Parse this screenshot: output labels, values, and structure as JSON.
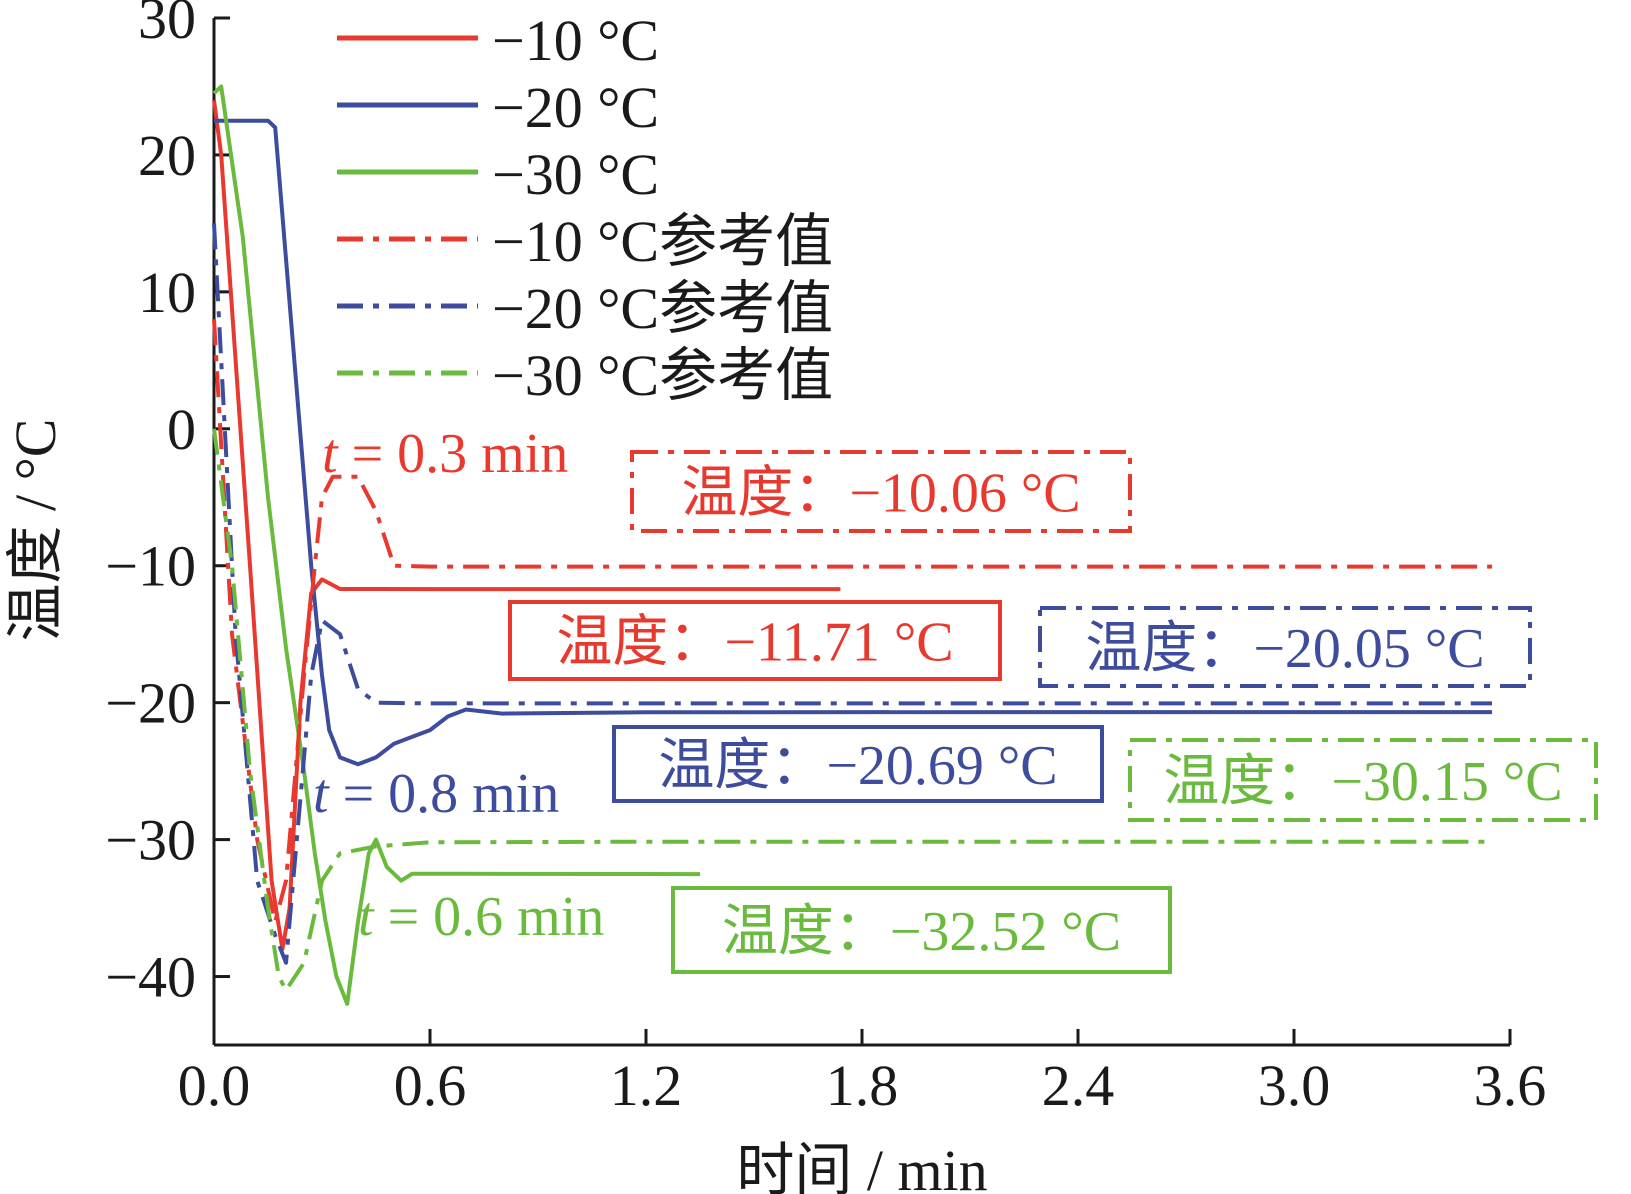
{
  "chart_data": {
    "type": "line",
    "xlabel": "时间 / min",
    "ylabel": "温度 / °C",
    "xlim": [
      0,
      3.6
    ],
    "ylim": [
      -45,
      30
    ],
    "xticks": [
      "0.0",
      "0.6",
      "1.2",
      "1.8",
      "2.4",
      "3.0",
      "3.6"
    ],
    "yticks": [
      "30",
      "20",
      "10",
      "0",
      "−10",
      "−20",
      "−30",
      "−40"
    ],
    "grid": false,
    "legend_position": "top-left",
    "series": [
      {
        "name": "−10 °C",
        "color": "#e8392f",
        "dash": "solid",
        "points": [
          [
            0.0,
            24
          ],
          [
            0.02,
            20
          ],
          [
            0.1,
            -10
          ],
          [
            0.16,
            -33
          ],
          [
            0.19,
            -38
          ],
          [
            0.21,
            -35
          ],
          [
            0.24,
            -20
          ],
          [
            0.27,
            -12
          ],
          [
            0.3,
            -11
          ],
          [
            0.35,
            -11.7
          ],
          [
            0.6,
            -11.71
          ],
          [
            1.2,
            -11.71
          ],
          [
            1.74,
            -11.71
          ]
        ]
      },
      {
        "name": "−20 °C",
        "color": "#3d4c9c",
        "dash": "solid",
        "points": [
          [
            0.0,
            22.5
          ],
          [
            0.15,
            22.5
          ],
          [
            0.17,
            22
          ],
          [
            0.27,
            -10
          ],
          [
            0.3,
            -18
          ],
          [
            0.32,
            -22
          ],
          [
            0.35,
            -24
          ],
          [
            0.4,
            -24.5
          ],
          [
            0.45,
            -24
          ],
          [
            0.5,
            -23
          ],
          [
            0.55,
            -22.5
          ],
          [
            0.6,
            -22
          ],
          [
            0.65,
            -21
          ],
          [
            0.7,
            -20.5
          ],
          [
            0.8,
            -20.8
          ],
          [
            1.2,
            -20.7
          ],
          [
            2.4,
            -20.69
          ],
          [
            3.55,
            -20.69
          ]
        ]
      },
      {
        "name": "−30 °C",
        "color": "#6aba3e",
        "dash": "solid",
        "points": [
          [
            0.0,
            24.5
          ],
          [
            0.02,
            25
          ],
          [
            0.08,
            14
          ],
          [
            0.15,
            -5
          ],
          [
            0.2,
            -16
          ],
          [
            0.25,
            -25
          ],
          [
            0.28,
            -31
          ],
          [
            0.31,
            -36
          ],
          [
            0.34,
            -40
          ],
          [
            0.37,
            -42
          ],
          [
            0.4,
            -36
          ],
          [
            0.43,
            -31
          ],
          [
            0.45,
            -30
          ],
          [
            0.48,
            -32
          ],
          [
            0.52,
            -33
          ],
          [
            0.55,
            -32.5
          ],
          [
            0.7,
            -32.5
          ],
          [
            1.35,
            -32.52
          ]
        ]
      },
      {
        "name": "−10 °C参考值",
        "color": "#e8392f",
        "dash": "dashdot",
        "points": [
          [
            0.0,
            8
          ],
          [
            0.05,
            -15
          ],
          [
            0.12,
            -30
          ],
          [
            0.17,
            -36
          ],
          [
            0.2,
            -33
          ],
          [
            0.25,
            -18
          ],
          [
            0.28,
            -10
          ],
          [
            0.3,
            -5
          ],
          [
            0.33,
            -3.5
          ],
          [
            0.4,
            -3.5
          ],
          [
            0.45,
            -6
          ],
          [
            0.5,
            -10
          ],
          [
            0.6,
            -10.06
          ],
          [
            1.2,
            -10.06
          ],
          [
            3.55,
            -10.06
          ]
        ]
      },
      {
        "name": "−20 °C参考值",
        "color": "#3d4c9c",
        "dash": "dashdot",
        "points": [
          [
            0.0,
            15
          ],
          [
            0.06,
            -15
          ],
          [
            0.12,
            -33
          ],
          [
            0.17,
            -37
          ],
          [
            0.2,
            -39
          ],
          [
            0.23,
            -30
          ],
          [
            0.27,
            -18
          ],
          [
            0.3,
            -14
          ],
          [
            0.35,
            -15
          ],
          [
            0.4,
            -19
          ],
          [
            0.45,
            -20
          ],
          [
            0.6,
            -20.05
          ],
          [
            1.2,
            -20.05
          ],
          [
            3.55,
            -20.05
          ]
        ]
      },
      {
        "name": "−30 °C参考值",
        "color": "#6aba3e",
        "dash": "dashdot",
        "points": [
          [
            0.0,
            0
          ],
          [
            0.05,
            -10
          ],
          [
            0.1,
            -25
          ],
          [
            0.15,
            -35
          ],
          [
            0.18,
            -40
          ],
          [
            0.2,
            -41
          ],
          [
            0.25,
            -39
          ],
          [
            0.3,
            -33
          ],
          [
            0.35,
            -31
          ],
          [
            0.45,
            -30.5
          ],
          [
            0.6,
            -30.2
          ],
          [
            1.2,
            -30.15
          ],
          [
            3.55,
            -30.15
          ]
        ]
      }
    ],
    "annotations": [
      {
        "t_symbol": "t",
        "text": " = 0.3 min",
        "color": "#e8392f"
      },
      {
        "t_symbol": "t",
        "text": " = 0.8 min",
        "color": "#3d4c9c"
      },
      {
        "t_symbol": "t",
        "text": " = 0.6 min",
        "color": "#6aba3e"
      },
      {
        "text": "温度：−10.06 °C",
        "color": "#e8392f",
        "border": "dashdot"
      },
      {
        "text": "温度：−11.71 °C",
        "color": "#e8392f",
        "border": "solid"
      },
      {
        "text": "温度：−20.05 °C",
        "color": "#3d4c9c",
        "border": "dashdot"
      },
      {
        "text": "温度：−20.69 °C",
        "color": "#3d4c9c",
        "border": "solid"
      },
      {
        "text": "温度：−30.15 °C",
        "color": "#6aba3e",
        "border": "dashdot"
      },
      {
        "text": "温度：−32.52 °C",
        "color": "#6aba3e",
        "border": "solid"
      }
    ]
  }
}
